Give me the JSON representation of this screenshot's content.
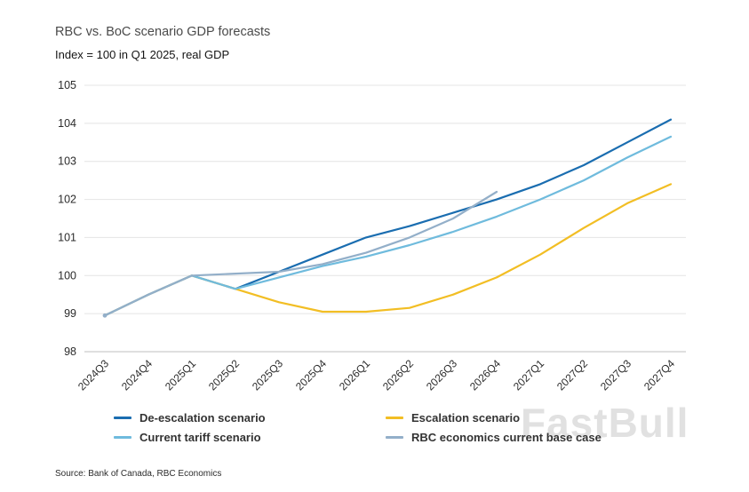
{
  "header": {
    "title": "RBC vs. BoC scenario GDP forecasts",
    "subtitle": "Index = 100 in Q1 2025, real GDP"
  },
  "watermark": "FastBull",
  "source": "Source: Bank of Canada, RBC Economics",
  "chart_data": {
    "type": "line",
    "title": "RBC vs. BoC scenario GDP forecasts",
    "subtitle": "Index = 100 in Q1 2025, real GDP",
    "categories": [
      "2024Q3",
      "2024Q4",
      "2025Q1",
      "2025Q2",
      "2025Q3",
      "2025Q4",
      "2026Q1",
      "2026Q2",
      "2026Q3",
      "2026Q4",
      "2027Q1",
      "2027Q2",
      "2027Q3",
      "2027Q4"
    ],
    "ylim": [
      98,
      105
    ],
    "yticks": [
      98,
      99,
      100,
      101,
      102,
      103,
      104,
      105
    ],
    "grid": true,
    "legend_position": "bottom",
    "axis_color": "#bfbfbf",
    "grid_color": "#e4e4e4",
    "tick_label_color": "#2b2b2b",
    "series": [
      {
        "name": "De-escalation scenario",
        "color": "#1a6db0",
        "values": [
          98.95,
          99.5,
          100,
          99.65,
          100.1,
          100.55,
          101.0,
          101.3,
          101.65,
          102.0,
          102.4,
          102.9,
          103.5,
          104.1
        ]
      },
      {
        "name": "Escalation scenario",
        "color": "#f2be24",
        "values": [
          98.95,
          99.5,
          100,
          99.65,
          99.3,
          99.05,
          99.05,
          99.15,
          99.5,
          99.95,
          100.55,
          101.25,
          101.9,
          102.4
        ]
      },
      {
        "name": "Current tariff scenario",
        "color": "#6fbbdd",
        "values": [
          98.95,
          99.5,
          100,
          99.65,
          99.95,
          100.25,
          100.5,
          100.8,
          101.15,
          101.55,
          102.0,
          102.5,
          103.1,
          103.65
        ]
      },
      {
        "name": "RBC economics current base case",
        "color": "#93afc9",
        "values": [
          98.95,
          99.5,
          100,
          100.05,
          100.1,
          100.3,
          100.6,
          101.0,
          101.5,
          102.2,
          null,
          null,
          null,
          null
        ]
      }
    ]
  }
}
